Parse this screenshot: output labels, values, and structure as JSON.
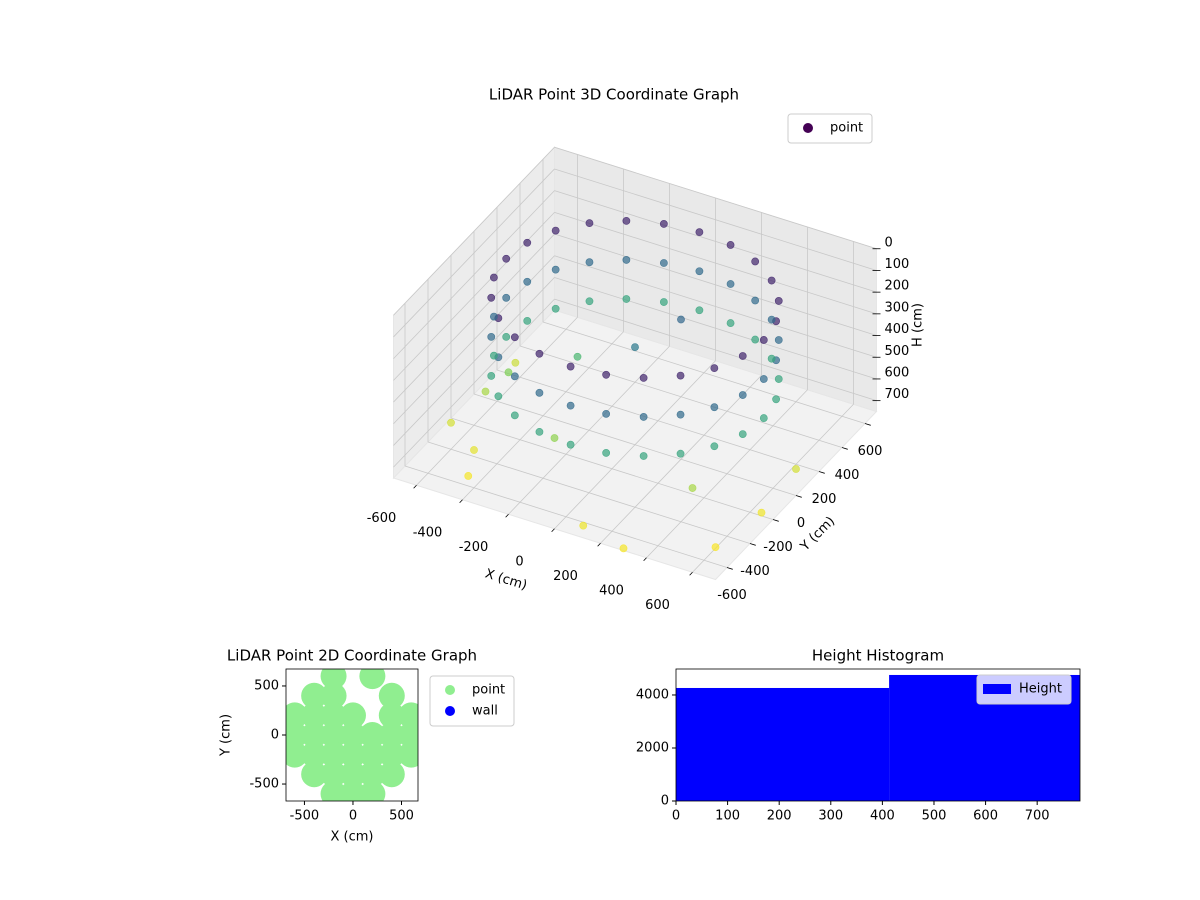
{
  "chart_data": [
    {
      "type": "scatter3d",
      "title": "LiDAR Point 3D Coordinate Graph",
      "xlabel": "X (cm)",
      "ylabel": "Y (cm)",
      "zlabel": "H (cm)",
      "xlim": [
        -700,
        700
      ],
      "ylim": [
        -700,
        700
      ],
      "zlim": [
        0,
        750
      ],
      "z_inverted": true,
      "xticks": [
        -600,
        -400,
        -200,
        0,
        200,
        400,
        600
      ],
      "yticks": [
        -600,
        -400,
        -200,
        0,
        200,
        400,
        600
      ],
      "zticks": [
        0,
        100,
        200,
        300,
        400,
        500,
        600,
        700
      ],
      "cmap": "viridis",
      "legend": "upper right",
      "grid": true,
      "series": [
        {
          "name": "point",
          "color": "#440154",
          "x": [
            560,
            541,
            485,
            396,
            280,
            145,
            0,
            -145,
            -280,
            -396,
            -485,
            -541,
            -560,
            -541,
            -485,
            -396,
            -280,
            -145,
            0,
            145,
            280,
            396,
            485,
            541,
            560,
            541,
            485,
            396,
            280,
            145,
            0,
            -145,
            -280,
            -396,
            -485,
            -541,
            -560,
            -541,
            -485,
            -396,
            -280,
            -145,
            0,
            145,
            280,
            396,
            485,
            541,
            560,
            541,
            485,
            396,
            280,
            145,
            0,
            -145,
            -280,
            -396,
            -485,
            -541,
            -560,
            -541,
            -485,
            -396,
            -280,
            -145,
            0,
            145,
            280,
            396,
            485,
            541,
            -650,
            -600,
            -500,
            -550,
            -620,
            -450,
            100,
            300,
            600,
            650,
            650,
            400,
            -200,
            0,
            100,
            -300
          ],
          "y": [
            0,
            145,
            280,
            396,
            485,
            541,
            560,
            541,
            485,
            396,
            280,
            145,
            0,
            -145,
            -280,
            -396,
            -485,
            -541,
            -560,
            -541,
            -485,
            -396,
            -280,
            -145,
            0,
            145,
            280,
            396,
            485,
            541,
            560,
            541,
            485,
            396,
            280,
            145,
            0,
            -145,
            -280,
            -396,
            -485,
            -541,
            -560,
            -541,
            -485,
            -396,
            -280,
            -145,
            0,
            145,
            280,
            396,
            485,
            541,
            560,
            541,
            485,
            396,
            280,
            145,
            0,
            -145,
            -280,
            -396,
            -485,
            -541,
            -560,
            -541,
            -485,
            -396,
            -280,
            -145,
            -300,
            -100,
            -400,
            0,
            200,
            -550,
            -650,
            -700,
            -500,
            -200,
            100,
            -300,
            -300,
            0,
            200,
            100
          ],
          "h": [
            80,
            80,
            80,
            80,
            80,
            80,
            80,
            80,
            80,
            80,
            80,
            80,
            80,
            80,
            80,
            80,
            80,
            80,
            80,
            80,
            80,
            80,
            80,
            80,
            260,
            260,
            260,
            260,
            260,
            260,
            260,
            260,
            260,
            260,
            260,
            260,
            260,
            260,
            260,
            260,
            260,
            260,
            260,
            260,
            260,
            260,
            260,
            260,
            440,
            440,
            440,
            440,
            440,
            440,
            440,
            440,
            440,
            440,
            440,
            440,
            440,
            440,
            440,
            440,
            440,
            440,
            440,
            440,
            440,
            440,
            440,
            440,
            700,
            650,
            720,
            600,
            690,
            740,
            730,
            740,
            745,
            735,
            700,
            650,
            620,
            300,
            250,
            500
          ]
        }
      ]
    },
    {
      "type": "scatter",
      "title": "LiDAR Point 2D Coordinate Graph",
      "xlabel": "X (cm)",
      "ylabel": "Y (cm)",
      "xlim": [
        -690,
        670
      ],
      "ylim": [
        -673,
        673
      ],
      "xticks": [
        -500,
        0,
        500
      ],
      "yticks": [
        -500,
        0,
        500
      ],
      "legend": "outside",
      "series": [
        {
          "name": "point",
          "color": "#90ee90",
          "x": [
            -200,
            200,
            -400,
            -200,
            400,
            -600,
            -400,
            -200,
            0,
            400,
            600,
            -600,
            -400,
            -200,
            0,
            200,
            400,
            600,
            -600,
            -400,
            -200,
            0,
            200,
            400,
            600,
            -400,
            -200,
            0,
            200,
            400,
            -200,
            0,
            200
          ],
          "y": [
            600,
            600,
            400,
            400,
            400,
            200,
            200,
            200,
            200,
            200,
            200,
            0,
            0,
            0,
            0,
            0,
            0,
            0,
            -200,
            -200,
            -200,
            -200,
            -200,
            -200,
            -200,
            -400,
            -400,
            -400,
            -400,
            -400,
            -600,
            -600,
            -600
          ]
        },
        {
          "name": "wall",
          "color": "#0000ff",
          "x": [],
          "y": []
        }
      ]
    },
    {
      "type": "histogram",
      "title": "Height Histogram",
      "bins": [
        0,
        413,
        783
      ],
      "series": [
        {
          "name": "Height",
          "color": "#0000ff",
          "values": [
            4264,
            4755
          ]
        }
      ],
      "xlim": [
        0,
        783
      ],
      "ylim": [
        0,
        4980
      ],
      "xticks": [
        0,
        100,
        200,
        300,
        400,
        500,
        600,
        700
      ],
      "yticks": [
        0,
        2000,
        4000
      ],
      "legend": "upper right"
    }
  ]
}
